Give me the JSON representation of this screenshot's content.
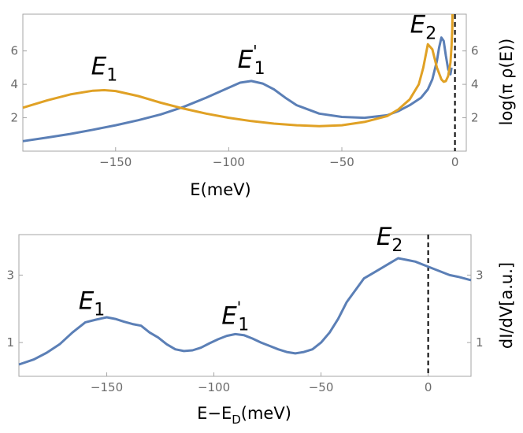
{
  "chart_data": [
    {
      "type": "line",
      "xlabel": "E(meV)",
      "ylabel": "log(π ρ(E))",
      "xlim": [
        -191,
        5
      ],
      "ylim": [
        0,
        8.2
      ],
      "xticks": [
        -150,
        -100,
        -50,
        0
      ],
      "yticks": [
        2,
        4,
        6
      ],
      "grid": false,
      "vline_x": 0,
      "annotations": [
        {
          "main": "E",
          "sub": "1",
          "sup": "",
          "x": -155,
          "y": 4.6
        },
        {
          "main": "E",
          "sub": "1",
          "sup": "'",
          "x": -90,
          "y": 5.0
        },
        {
          "main": "E",
          "sub": "2",
          "sup": "",
          "x": -14,
          "y": 7.1
        }
      ],
      "series": [
        {
          "color": "#5b7fb6",
          "x": [
            -191,
            -180,
            -170,
            -160,
            -150,
            -140,
            -130,
            -120,
            -110,
            -100,
            -95,
            -90,
            -85,
            -80,
            -75,
            -70,
            -60,
            -50,
            -40,
            -30,
            -25,
            -20,
            -15,
            -12,
            -10,
            -8,
            -7,
            -6,
            -5,
            -4,
            -3,
            -2,
            -1.5
          ],
          "y": [
            0.6,
            0.82,
            1.03,
            1.28,
            1.55,
            1.85,
            2.2,
            2.65,
            3.2,
            3.8,
            4.1,
            4.2,
            4.05,
            3.7,
            3.2,
            2.75,
            2.25,
            2.05,
            2.0,
            2.15,
            2.4,
            2.75,
            3.2,
            3.7,
            4.3,
            5.4,
            6.2,
            6.8,
            6.6,
            5.7,
            4.9,
            4.6,
            5.0
          ]
        },
        {
          "color": "#e0a125",
          "x": [
            -191,
            -180,
            -170,
            -160,
            -155,
            -150,
            -140,
            -130,
            -120,
            -110,
            -100,
            -90,
            -80,
            -70,
            -60,
            -50,
            -40,
            -30,
            -25,
            -20,
            -16,
            -14,
            -12,
            -10,
            -8,
            -6,
            -5,
            -4,
            -3,
            -2,
            -1.5,
            -1.2,
            -1.1
          ],
          "y": [
            2.6,
            3.05,
            3.4,
            3.62,
            3.65,
            3.6,
            3.3,
            2.9,
            2.55,
            2.25,
            2.0,
            1.8,
            1.65,
            1.55,
            1.5,
            1.55,
            1.75,
            2.1,
            2.5,
            3.1,
            4.0,
            5.0,
            6.4,
            6.1,
            5.0,
            4.3,
            4.15,
            4.2,
            4.5,
            5.3,
            6.3,
            7.3,
            8.2
          ]
        }
      ]
    },
    {
      "type": "line",
      "xlabel": "E−E",
      "xlabel_sub": "D",
      "xlabel_tail": "(meV)",
      "ylabel": "dI/dV[a.u.]",
      "xlim": [
        -191,
        20
      ],
      "ylim": [
        0,
        4.2
      ],
      "xticks": [
        -150,
        -100,
        -50,
        0
      ],
      "yticks": [
        1,
        3
      ],
      "grid": false,
      "vline_x": 0,
      "annotations": [
        {
          "main": "E",
          "sub": "1",
          "sup": "",
          "x": -157,
          "y": 2.0
        },
        {
          "main": "E",
          "sub": "1",
          "sup": "'",
          "x": -90,
          "y": 1.55
        },
        {
          "main": "E",
          "sub": "2",
          "sup": "",
          "x": -18,
          "y": 3.9
        }
      ],
      "series": [
        {
          "color": "#5b7fb6",
          "x": [
            -191,
            -184,
            -178,
            -172,
            -166,
            -160,
            -155,
            -150,
            -146,
            -142,
            -138,
            -134,
            -130,
            -126,
            -122,
            -118,
            -114,
            -110,
            -106,
            -102,
            -98,
            -94,
            -90,
            -86,
            -82,
            -78,
            -74,
            -70,
            -66,
            -62,
            -58,
            -54,
            -50,
            -46,
            -42,
            -38,
            -34,
            -30,
            -26,
            -22,
            -18,
            -14,
            -10,
            -6,
            -2,
            2,
            6,
            10,
            14,
            20
          ],
          "y": [
            0.35,
            0.5,
            0.7,
            0.95,
            1.3,
            1.6,
            1.68,
            1.75,
            1.7,
            1.62,
            1.55,
            1.5,
            1.3,
            1.15,
            0.95,
            0.8,
            0.75,
            0.77,
            0.85,
            0.98,
            1.1,
            1.2,
            1.25,
            1.22,
            1.12,
            1.0,
            0.9,
            0.8,
            0.72,
            0.68,
            0.72,
            0.8,
            1.0,
            1.3,
            1.7,
            2.2,
            2.55,
            2.9,
            3.05,
            3.2,
            3.35,
            3.5,
            3.45,
            3.4,
            3.3,
            3.2,
            3.1,
            3.0,
            2.95,
            2.85
          ]
        }
      ]
    }
  ]
}
